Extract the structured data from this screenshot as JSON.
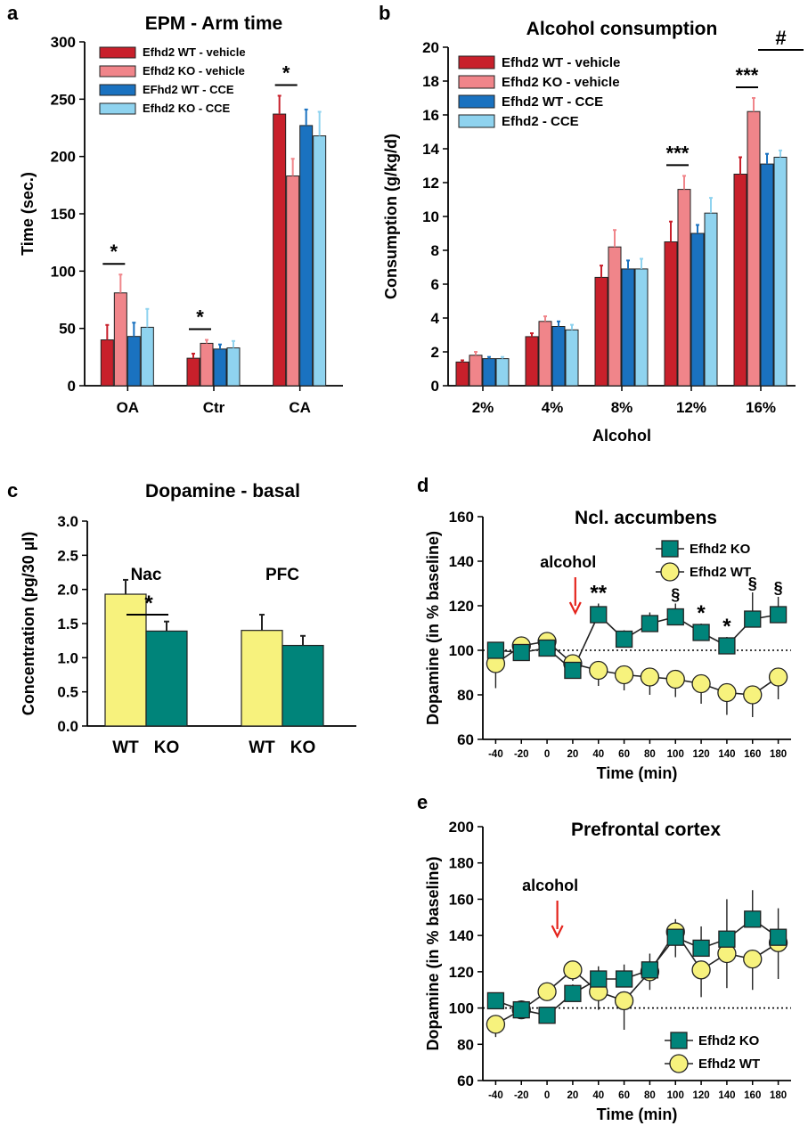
{
  "figure": {
    "panels": {
      "a": {
        "letter": "a"
      },
      "b": {
        "letter": "b"
      },
      "c": {
        "letter": "c"
      },
      "d": {
        "letter": "d"
      },
      "e": {
        "letter": "e"
      }
    }
  },
  "chart_data": [
    {
      "id": "a",
      "type": "bar",
      "title": "EPM - Arm time",
      "xlabel": "",
      "ylabel": "Time (sec.)",
      "ylim": [
        0,
        300
      ],
      "yticks": [
        "0",
        "50",
        "100",
        "150",
        "200",
        "250",
        "300"
      ],
      "categories": [
        "OA",
        "Ctr",
        "CA"
      ],
      "legend_position": "top-left",
      "series": [
        {
          "name": "Efhd2 WT - vehicle",
          "color": "#c8202b",
          "values": [
            40,
            24,
            237
          ],
          "errors": [
            13,
            4,
            16
          ]
        },
        {
          "name": "Efhd2 KO - vehicle",
          "color": "#f0858a",
          "values": [
            81,
            37,
            183
          ],
          "errors": [
            16,
            3,
            15
          ]
        },
        {
          "name": "EFhd2 WT - CCE",
          "color": "#1a72c0",
          "values": [
            43,
            32,
            227
          ],
          "errors": [
            12,
            4,
            14
          ]
        },
        {
          "name": "Efhd2 KO - CCE",
          "color": "#8fd3ef",
          "values": [
            51,
            33,
            218
          ],
          "errors": [
            16,
            6,
            21
          ]
        }
      ],
      "annotations": [
        {
          "text": "*",
          "category": "OA"
        },
        {
          "text": "*",
          "category": "Ctr"
        },
        {
          "text": "*",
          "category": "CA"
        }
      ]
    },
    {
      "id": "b",
      "type": "bar",
      "title": "Alcohol consumption",
      "xlabel": "Alcohol",
      "ylabel": "Consumption (g/kg/d)",
      "ylim": [
        0,
        20
      ],
      "yticks": [
        "0",
        "2",
        "4",
        "6",
        "8",
        "10",
        "12",
        "14",
        "16",
        "18",
        "20"
      ],
      "categories": [
        "2%",
        "4%",
        "8%",
        "12%",
        "16%"
      ],
      "legend_position": "top-left",
      "series": [
        {
          "name": "Efhd2 WT - vehicle",
          "color": "#c8202b",
          "values": [
            1.4,
            2.9,
            6.4,
            8.5,
            12.5
          ],
          "errors": [
            0.1,
            0.2,
            0.7,
            1.2,
            1.0
          ]
        },
        {
          "name": "Efhd2 KO - vehicle",
          "color": "#f0858a",
          "values": [
            1.8,
            3.8,
            8.2,
            11.6,
            16.2
          ],
          "errors": [
            0.2,
            0.3,
            1.0,
            0.8,
            0.8
          ]
        },
        {
          "name": "Efhd2 WT - CCE",
          "color": "#1a72c0",
          "values": [
            1.6,
            3.5,
            6.9,
            9.0,
            13.1
          ],
          "errors": [
            0.1,
            0.3,
            0.5,
            0.5,
            0.6
          ]
        },
        {
          "name": "Efhd2 - CCE",
          "color": "#8fd3ef",
          "values": [
            1.6,
            3.3,
            6.9,
            10.2,
            13.5
          ],
          "errors": [
            0.1,
            0.3,
            0.6,
            0.9,
            0.4
          ]
        }
      ],
      "annotations": [
        {
          "text": "***",
          "category": "12%"
        },
        {
          "text": "***",
          "category": "16%"
        },
        {
          "text": "#",
          "category": "16%"
        }
      ]
    },
    {
      "id": "c",
      "type": "bar",
      "title": "Dopamine - basal",
      "xlabel": "",
      "ylabel": "Concentration (pg/30 µl)",
      "ylim": [
        0,
        3.0
      ],
      "yticks": [
        "0.0",
        "0.5",
        "1.0",
        "1.5",
        "2.0",
        "2.5",
        "3.0"
      ],
      "groups": [
        "Nac",
        "PFC"
      ],
      "bars": [
        {
          "group": "Nac",
          "label": "WT",
          "color": "#f7f27d",
          "value": 1.93,
          "error": 0.21
        },
        {
          "group": "Nac",
          "label": "KO",
          "color": "#00847a",
          "value": 1.39,
          "error": 0.14
        },
        {
          "group": "PFC",
          "label": "WT",
          "color": "#f7f27d",
          "value": 1.4,
          "error": 0.23
        },
        {
          "group": "PFC",
          "label": "KO",
          "color": "#00847a",
          "value": 1.18,
          "error": 0.14
        }
      ],
      "annotations": [
        {
          "text": "*",
          "group": "Nac"
        }
      ]
    },
    {
      "id": "d",
      "type": "line",
      "title": "Ncl. accumbens",
      "xlabel": "Time (min)",
      "ylabel": "Dopamine (in % baseline)",
      "ylim": [
        60,
        160
      ],
      "yticks": [
        "60",
        "80",
        "100",
        "120",
        "140",
        "160"
      ],
      "x": [
        -40,
        -20,
        0,
        20,
        40,
        60,
        80,
        100,
        120,
        140,
        160,
        180
      ],
      "xticks": [
        "-40",
        "-20",
        "0",
        "20",
        "40",
        "60",
        "80",
        "100",
        "120",
        "140",
        "160",
        "180"
      ],
      "baseline": 100,
      "arrow_label": "alcohol",
      "arrow_x": 22,
      "legend_position": "top-right",
      "series": [
        {
          "name": "Efhd2 KO",
          "marker": "square",
          "color": "#00847a",
          "values": [
            100,
            99,
            101,
            91,
            116,
            105,
            112,
            115,
            108,
            102,
            114,
            116
          ],
          "errors": [
            2,
            2,
            2,
            2,
            5,
            4,
            5,
            6,
            4,
            4,
            12,
            8
          ]
        },
        {
          "name": "Efhd2 WT",
          "marker": "circle",
          "color": "#f7f27d",
          "values": [
            94,
            102,
            104,
            94,
            91,
            89,
            88,
            87,
            85,
            81,
            80,
            88
          ],
          "errors": [
            11,
            6,
            4,
            6,
            7,
            7,
            8,
            8,
            9,
            10,
            10,
            10
          ]
        }
      ],
      "annotations": [
        {
          "text": "**",
          "x": 40
        },
        {
          "text": "§",
          "x": 100
        },
        {
          "text": "*",
          "x": 120
        },
        {
          "text": "*",
          "x": 140
        },
        {
          "text": "§",
          "x": 160
        },
        {
          "text": "§",
          "x": 180
        }
      ]
    },
    {
      "id": "e",
      "type": "line",
      "title": "Prefrontal cortex",
      "xlabel": "Time (min)",
      "ylabel": "Dopamine (in % baseline)",
      "ylim": [
        60,
        200
      ],
      "yticks": [
        "60",
        "80",
        "100",
        "120",
        "140",
        "160",
        "180",
        "200"
      ],
      "x": [
        -40,
        -20,
        0,
        20,
        40,
        60,
        80,
        100,
        120,
        140,
        160,
        180
      ],
      "xticks": [
        "-40",
        "-20",
        "0",
        "20",
        "40",
        "60",
        "80",
        "100",
        "120",
        "140",
        "160",
        "180"
      ],
      "baseline": 100,
      "arrow_label": "alcohol",
      "arrow_x": 8,
      "legend_position": "bottom-right",
      "series": [
        {
          "name": "Efhd2 KO",
          "marker": "square",
          "color": "#00847a",
          "values": [
            104,
            99,
            96,
            108,
            116,
            116,
            121,
            139,
            133,
            138,
            149,
            139
          ],
          "errors": [
            4,
            3,
            3,
            5,
            7,
            8,
            9,
            10,
            12,
            22,
            16,
            16
          ]
        },
        {
          "name": "Efhd2 WT",
          "marker": "circle",
          "color": "#f7f27d",
          "values": [
            91,
            99,
            109,
            121,
            109,
            104,
            120,
            142,
            121,
            130,
            127,
            136
          ],
          "errors": [
            7,
            4,
            5,
            6,
            10,
            16,
            10,
            14,
            15,
            19,
            17,
            20
          ]
        }
      ]
    }
  ]
}
